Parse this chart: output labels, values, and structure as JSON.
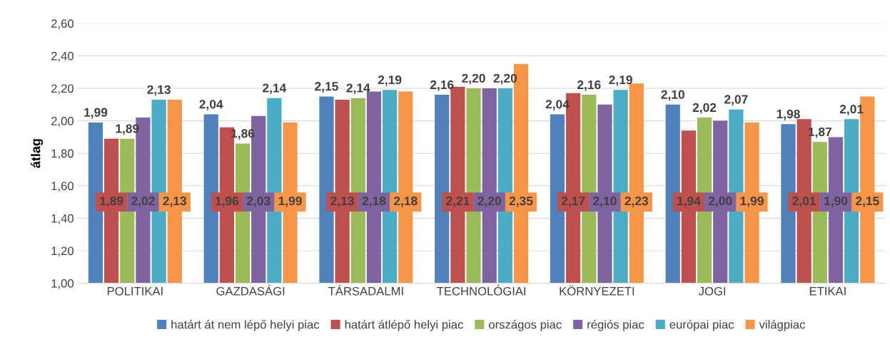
{
  "chart_data": {
    "type": "bar",
    "ylabel": "átlag",
    "categories": [
      "POLITIKAI",
      "GAZDASÁGI",
      "TÁRSADALMI",
      "TECHNOLÓGIAI",
      "KÖRNYEZETI",
      "JOGI",
      "ETIKAI"
    ],
    "series": [
      {
        "name": "határt át nem lépő helyi piac",
        "color": "#4f81bd",
        "values": [
          1.99,
          2.04,
          2.15,
          2.16,
          2.04,
          2.1,
          1.98
        ],
        "value_labels": [
          "1,99",
          "2,04",
          "2,15",
          "2,16",
          "2,04",
          "2,10",
          "1,98"
        ]
      },
      {
        "name": "határt átlépő helyi piac",
        "color": "#c0504d",
        "values": [
          1.89,
          1.96,
          2.13,
          2.21,
          2.17,
          1.94,
          2.01
        ],
        "value_labels": [
          "1,89",
          "1,96",
          "2,13",
          "2,21",
          "2,17",
          "1,94",
          "2,01"
        ]
      },
      {
        "name": "országos piac",
        "color": "#9bbb59",
        "values": [
          1.89,
          1.86,
          2.14,
          2.2,
          2.16,
          2.02,
          1.87
        ],
        "value_labels": [
          "1,89",
          "1,86",
          "2,14",
          "2,20",
          "2,16",
          "2,02",
          "1,87"
        ]
      },
      {
        "name": "régiós piac",
        "color": "#8064a2",
        "values": [
          2.02,
          2.03,
          2.18,
          2.2,
          2.1,
          2.0,
          1.9
        ],
        "value_labels": [
          "2,02",
          "2,03",
          "2,18",
          "2,20",
          "2,10",
          "2,00",
          "1,90"
        ]
      },
      {
        "name": "európai piac",
        "color": "#4bacc6",
        "values": [
          2.13,
          2.14,
          2.19,
          2.2,
          2.19,
          2.07,
          2.01
        ],
        "value_labels": [
          "2,13",
          "2,14",
          "2,19",
          "2,20",
          "2,19",
          "2,07",
          "2,01"
        ]
      },
      {
        "name": "világpiac",
        "color": "#f79646",
        "values": [
          2.13,
          1.99,
          2.18,
          2.35,
          2.23,
          1.99,
          2.15
        ],
        "value_labels": [
          "2,13",
          "1,99",
          "2,18",
          "2,35",
          "2,23",
          "1,99",
          "2,15"
        ]
      }
    ],
    "ylim": [
      1.0,
      2.6
    ],
    "yticks": [
      {
        "value": 1.0,
        "label": "1,00"
      },
      {
        "value": 1.2,
        "label": "1,20"
      },
      {
        "value": 1.4,
        "label": "1,40"
      },
      {
        "value": 1.6,
        "label": "1,60"
      },
      {
        "value": 1.8,
        "label": "1,80"
      },
      {
        "value": 2.0,
        "label": "2,00"
      },
      {
        "value": 2.2,
        "label": "2,20"
      },
      {
        "value": 2.4,
        "label": "2,40"
      },
      {
        "value": 2.6,
        "label": "2,60"
      }
    ],
    "grid": "y",
    "legend": "bottom"
  }
}
